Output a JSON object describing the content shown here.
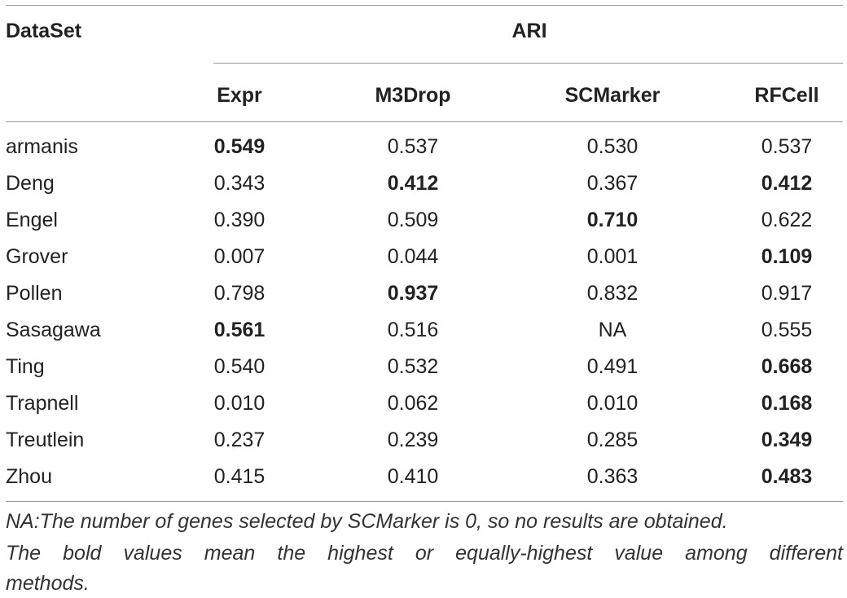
{
  "table": {
    "header": {
      "dataset_label": "DataSet",
      "group_label": "ARI",
      "columns": [
        "Expr",
        "M3Drop",
        "SCMarker",
        "RFCell"
      ]
    },
    "rows": [
      {
        "name": "armanis",
        "values": [
          "0.549",
          "0.537",
          "0.530",
          "0.537"
        ],
        "bold": [
          true,
          false,
          false,
          false
        ]
      },
      {
        "name": "Deng",
        "values": [
          "0.343",
          "0.412",
          "0.367",
          "0.412"
        ],
        "bold": [
          false,
          true,
          false,
          true
        ]
      },
      {
        "name": "Engel",
        "values": [
          "0.390",
          "0.509",
          "0.710",
          "0.622"
        ],
        "bold": [
          false,
          false,
          true,
          false
        ]
      },
      {
        "name": "Grover",
        "values": [
          "0.007",
          "0.044",
          "0.001",
          "0.109"
        ],
        "bold": [
          false,
          false,
          false,
          true
        ]
      },
      {
        "name": "Pollen",
        "values": [
          "0.798",
          "0.937",
          "0.832",
          "0.917"
        ],
        "bold": [
          false,
          true,
          false,
          false
        ]
      },
      {
        "name": "Sasagawa",
        "values": [
          "0.561",
          "0.516",
          "NA",
          "0.555"
        ],
        "bold": [
          true,
          false,
          false,
          false
        ]
      },
      {
        "name": "Ting",
        "values": [
          "0.540",
          "0.532",
          "0.491",
          "0.668"
        ],
        "bold": [
          false,
          false,
          false,
          true
        ]
      },
      {
        "name": "Trapnell",
        "values": [
          "0.010",
          "0.062",
          "0.010",
          "0.168"
        ],
        "bold": [
          false,
          false,
          false,
          true
        ]
      },
      {
        "name": "Treutlein",
        "values": [
          "0.237",
          "0.239",
          "0.285",
          "0.349"
        ],
        "bold": [
          false,
          false,
          false,
          true
        ]
      },
      {
        "name": "Zhou",
        "values": [
          "0.415",
          "0.410",
          "0.363",
          "0.483"
        ],
        "bold": [
          false,
          false,
          false,
          true
        ]
      }
    ]
  },
  "notes": {
    "line1": "NA:The number of genes selected by SCMarker is 0, so no results are obtained.",
    "line2": "The bold values mean the highest or equally-highest value among different",
    "line3": "methods."
  }
}
